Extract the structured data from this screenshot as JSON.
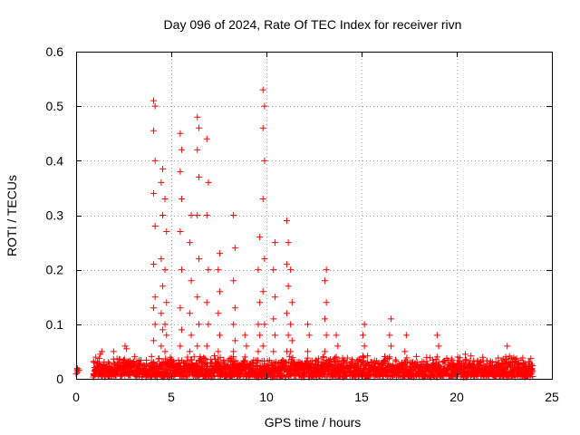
{
  "chart_data": {
    "type": "scatter",
    "title": "Day 096 of 2024, Rate Of TEC Index for receiver rivn",
    "xlabel": "GPS time / hours",
    "ylabel": "ROTI / TECUs",
    "xlim": [
      0,
      25
    ],
    "ylim": [
      0,
      0.6
    ],
    "xticks": [
      "0",
      "5",
      "10",
      "15",
      "20",
      "25"
    ],
    "yticks": [
      "0",
      "0.1",
      "0.2",
      "0.3",
      "0.4",
      "0.5",
      "0.6"
    ],
    "grid": true,
    "marker": "plus",
    "color": "#ff0000",
    "baseline_band": {
      "x_range": [
        0.0,
        24.0
      ],
      "typical_min": 0.003,
      "typical_max": 0.04
    },
    "spikes": [
      {
        "x": 0.1,
        "ys": [
          0.012,
          0.016,
          0.019
        ]
      },
      {
        "x": 1.3,
        "ys": [
          0.045,
          0.05
        ]
      },
      {
        "x": 2.0,
        "ys": [
          0.05
        ]
      },
      {
        "x": 2.6,
        "ys": [
          0.06,
          0.055
        ]
      },
      {
        "x": 4.1,
        "ys": [
          0.07,
          0.1,
          0.13,
          0.15,
          0.21,
          0.28,
          0.34,
          0.4,
          0.455,
          0.5,
          0.51
        ]
      },
      {
        "x": 4.5,
        "ys": [
          0.06,
          0.09,
          0.12,
          0.17,
          0.22,
          0.3,
          0.36,
          0.385
        ]
      },
      {
        "x": 4.7,
        "ys": [
          0.05,
          0.08,
          0.1,
          0.14,
          0.2,
          0.27,
          0.33
        ]
      },
      {
        "x": 5.5,
        "ys": [
          0.06,
          0.09,
          0.13,
          0.2,
          0.27,
          0.33,
          0.38,
          0.42,
          0.45
        ]
      },
      {
        "x": 6.0,
        "ys": [
          0.05,
          0.08,
          0.12,
          0.18,
          0.25,
          0.3
        ]
      },
      {
        "x": 6.4,
        "ys": [
          0.06,
          0.1,
          0.15,
          0.22,
          0.3,
          0.37,
          0.42,
          0.46,
          0.48
        ]
      },
      {
        "x": 6.9,
        "ys": [
          0.06,
          0.1,
          0.14,
          0.2,
          0.3,
          0.36,
          0.44
        ]
      },
      {
        "x": 7.5,
        "ys": [
          0.05,
          0.08,
          0.12,
          0.16,
          0.2,
          0.23
        ]
      },
      {
        "x": 8.3,
        "ys": [
          0.05,
          0.07,
          0.1,
          0.13,
          0.18,
          0.24,
          0.3
        ]
      },
      {
        "x": 8.9,
        "ys": [
          0.04,
          0.06,
          0.08
        ]
      },
      {
        "x": 9.6,
        "ys": [
          0.05,
          0.08,
          0.1,
          0.14,
          0.2,
          0.26
        ]
      },
      {
        "x": 9.85,
        "ys": [
          0.06,
          0.1,
          0.16,
          0.22,
          0.33,
          0.4,
          0.46,
          0.5,
          0.53
        ]
      },
      {
        "x": 10.4,
        "ys": [
          0.05,
          0.08,
          0.11,
          0.15,
          0.2,
          0.25
        ]
      },
      {
        "x": 11.1,
        "ys": [
          0.05,
          0.08,
          0.12,
          0.17,
          0.21,
          0.25,
          0.29
        ]
      },
      {
        "x": 11.3,
        "ys": [
          0.05,
          0.07,
          0.1,
          0.14,
          0.2
        ]
      },
      {
        "x": 12.2,
        "ys": [
          0.05,
          0.08,
          0.1
        ]
      },
      {
        "x": 13.1,
        "ys": [
          0.05,
          0.08,
          0.11,
          0.14,
          0.18,
          0.2
        ]
      },
      {
        "x": 13.7,
        "ys": [
          0.04,
          0.06,
          0.08
        ]
      },
      {
        "x": 15.1,
        "ys": [
          0.04,
          0.06,
          0.08,
          0.1
        ]
      },
      {
        "x": 16.5,
        "ys": [
          0.04,
          0.06,
          0.08,
          0.11
        ]
      },
      {
        "x": 17.3,
        "ys": [
          0.05,
          0.08
        ]
      },
      {
        "x": 19.0,
        "ys": [
          0.04,
          0.06,
          0.08
        ]
      },
      {
        "x": 20.4,
        "ys": [
          0.03,
          0.045
        ]
      },
      {
        "x": 22.6,
        "ys": [
          0.04,
          0.06
        ]
      }
    ]
  }
}
